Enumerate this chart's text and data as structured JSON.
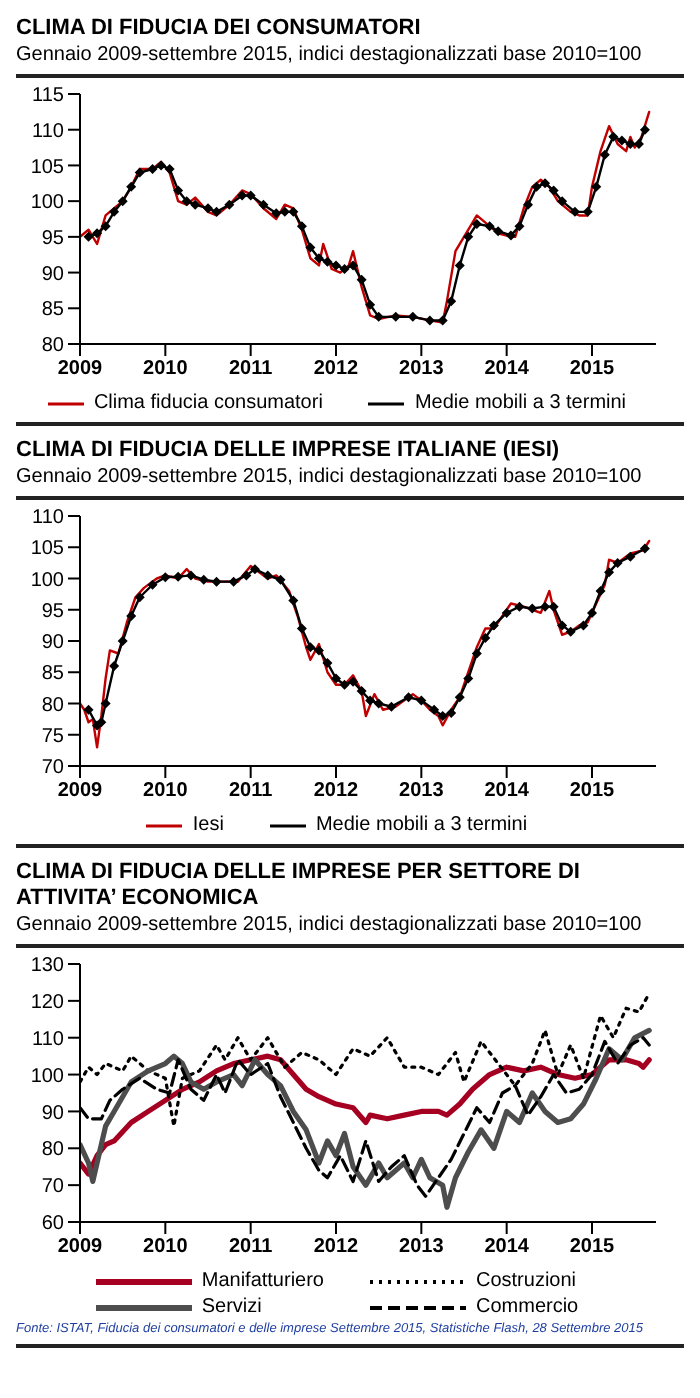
{
  "chart_data": [
    {
      "type": "line",
      "title": "CLIMA DI FIDUCIA DEI CONSUMATORI",
      "subtitle": "Gennaio 2009-settembre 2015, indici destagionalizzati base 2010=100",
      "xlim": [
        2009,
        2015.75
      ],
      "xticks": [
        2009,
        2010,
        2011,
        2012,
        2013,
        2014,
        2015
      ],
      "ylim": [
        80,
        115
      ],
      "yticks": [
        80,
        85,
        90,
        95,
        100,
        105,
        110,
        115
      ],
      "legend": "bottom",
      "series": [
        {
          "name": "Clima fiducia consumatori",
          "color": "#c00000",
          "marker": "none",
          "line_style": "solid",
          "x": [
            2009.0,
            2009.1,
            2009.2,
            2009.3,
            2009.5,
            2009.6,
            2009.7,
            2009.85,
            2009.95,
            2010.05,
            2010.15,
            2010.25,
            2010.35,
            2010.5,
            2010.6,
            2010.75,
            2010.9,
            2011.0,
            2011.15,
            2011.3,
            2011.4,
            2011.5,
            2011.6,
            2011.7,
            2011.8,
            2011.85,
            2011.95,
            2012.05,
            2012.15,
            2012.2,
            2012.3,
            2012.4,
            2012.5,
            2012.7,
            2012.9,
            2013.1,
            2013.25,
            2013.3,
            2013.4,
            2013.5,
            2013.6,
            2013.65,
            2013.8,
            2013.9,
            2014.05,
            2014.1,
            2014.2,
            2014.3,
            2014.4,
            2014.5,
            2014.6,
            2014.75,
            2014.85,
            2014.95,
            2015.0,
            2015.1,
            2015.2,
            2015.3,
            2015.4,
            2015.45,
            2015.5,
            2015.58,
            2015.67
          ],
          "values": [
            95,
            96,
            94,
            98,
            100,
            102,
            104.5,
            104.5,
            105.5,
            104,
            100,
            99.5,
            100.5,
            98.5,
            98,
            99.5,
            101.5,
            101,
            99,
            97.5,
            99.5,
            99,
            96,
            92,
            91,
            94,
            90.5,
            90,
            91,
            93,
            88,
            84,
            83.5,
            84,
            83.8,
            83.3,
            83,
            86,
            93,
            95,
            97,
            98,
            96.5,
            95.5,
            95,
            95,
            99,
            102,
            103,
            102,
            100,
            98.5,
            98,
            98,
            102,
            107,
            110.5,
            108,
            107,
            109,
            107.5,
            109,
            112.5
          ]
        },
        {
          "name": "Medie mobili a 3 termini",
          "color": "#000000",
          "marker": "diamond",
          "line_style": "solid",
          "x": [
            2009.1,
            2009.2,
            2009.3,
            2009.4,
            2009.5,
            2009.6,
            2009.7,
            2009.85,
            2009.95,
            2010.05,
            2010.15,
            2010.25,
            2010.35,
            2010.5,
            2010.6,
            2010.75,
            2010.9,
            2011.0,
            2011.15,
            2011.3,
            2011.4,
            2011.5,
            2011.6,
            2011.7,
            2011.8,
            2011.9,
            2012.0,
            2012.1,
            2012.2,
            2012.3,
            2012.4,
            2012.5,
            2012.7,
            2012.9,
            2013.1,
            2013.25,
            2013.35,
            2013.45,
            2013.55,
            2013.65,
            2013.8,
            2013.9,
            2014.05,
            2014.15,
            2014.25,
            2014.35,
            2014.45,
            2014.55,
            2014.65,
            2014.8,
            2014.95,
            2015.05,
            2015.15,
            2015.25,
            2015.35,
            2015.45,
            2015.55,
            2015.62
          ],
          "values": [
            95,
            95.5,
            96.5,
            98.5,
            100,
            102,
            104,
            104.5,
            105,
            104.5,
            101.5,
            100,
            99.5,
            99,
            98.5,
            99.5,
            100.8,
            100.8,
            99.5,
            98.3,
            98.5,
            98.5,
            96.5,
            93.5,
            92,
            91.5,
            91,
            90.5,
            91,
            89,
            85.5,
            83.8,
            83.8,
            83.8,
            83.3,
            83.3,
            86,
            91,
            95,
            96.8,
            96.5,
            95.8,
            95.2,
            96.5,
            99.5,
            102,
            102.5,
            101.5,
            100,
            98.5,
            98.5,
            102,
            106.5,
            109,
            108.5,
            108,
            108,
            110
          ]
        }
      ]
    },
    {
      "type": "line",
      "title": "CLIMA DI FIDUCIA DELLE IMPRESE ITALIANE (IESI)",
      "subtitle": "Gennaio 2009-settembre 2015, indici destagionalizzati base 2010=100",
      "xlim": [
        2009,
        2015.75
      ],
      "xticks": [
        2009,
        2010,
        2011,
        2012,
        2013,
        2014,
        2015
      ],
      "ylim": [
        70,
        110
      ],
      "yticks": [
        70,
        75,
        80,
        85,
        90,
        95,
        100,
        105,
        110
      ],
      "legend": "bottom",
      "series": [
        {
          "name": "Iesi",
          "color": "#c00000",
          "marker": "none",
          "line_style": "solid",
          "x": [
            2009.0,
            2009.05,
            2009.1,
            2009.15,
            2009.2,
            2009.25,
            2009.3,
            2009.35,
            2009.45,
            2009.55,
            2009.65,
            2009.75,
            2009.9,
            2010.0,
            2010.15,
            2010.25,
            2010.35,
            2010.5,
            2010.7,
            2010.85,
            2011.0,
            2011.1,
            2011.2,
            2011.3,
            2011.45,
            2011.55,
            2011.65,
            2011.7,
            2011.8,
            2011.9,
            2012.0,
            2012.1,
            2012.2,
            2012.3,
            2012.35,
            2012.45,
            2012.55,
            2012.7,
            2012.9,
            2013.0,
            2013.1,
            2013.2,
            2013.25,
            2013.35,
            2013.45,
            2013.55,
            2013.65,
            2013.75,
            2013.85,
            2013.95,
            2014.05,
            2014.2,
            2014.3,
            2014.4,
            2014.5,
            2014.55,
            2014.65,
            2014.75,
            2014.85,
            2014.95,
            2015.05,
            2015.15,
            2015.2,
            2015.3,
            2015.45,
            2015.6,
            2015.67
          ],
          "values": [
            80,
            79,
            77,
            77.5,
            73,
            78,
            84,
            88.5,
            88,
            93,
            97,
            98.5,
            100,
            100.5,
            100,
            101.5,
            100,
            99.5,
            99.5,
            99.5,
            102,
            101,
            100,
            100.5,
            98,
            94,
            89,
            87,
            89.5,
            85,
            83,
            83,
            84.5,
            82,
            78,
            81.5,
            79,
            79.5,
            81.5,
            80.5,
            79,
            78,
            76.5,
            79,
            81,
            85,
            89,
            92,
            92,
            94,
            96,
            95.5,
            95,
            94.5,
            98,
            95,
            91,
            91.5,
            92.5,
            93,
            96,
            99,
            103,
            102.5,
            104,
            104.5,
            106
          ]
        },
        {
          "name": "Medie mobili a 3 termini",
          "color": "#000000",
          "marker": "diamond",
          "line_style": "solid",
          "x": [
            2009.1,
            2009.2,
            2009.25,
            2009.3,
            2009.4,
            2009.5,
            2009.6,
            2009.7,
            2009.85,
            2010.0,
            2010.15,
            2010.3,
            2010.45,
            2010.6,
            2010.8,
            2010.95,
            2011.05,
            2011.2,
            2011.35,
            2011.5,
            2011.6,
            2011.7,
            2011.8,
            2011.9,
            2012.0,
            2012.1,
            2012.2,
            2012.3,
            2012.4,
            2012.5,
            2012.65,
            2012.85,
            2013.0,
            2013.15,
            2013.25,
            2013.35,
            2013.45,
            2013.55,
            2013.65,
            2013.75,
            2013.85,
            2014.0,
            2014.15,
            2014.3,
            2014.45,
            2014.55,
            2014.65,
            2014.75,
            2014.9,
            2015.0,
            2015.1,
            2015.2,
            2015.3,
            2015.45,
            2015.62
          ],
          "values": [
            79,
            76.5,
            77,
            80,
            86,
            90,
            94,
            97,
            99,
            100.2,
            100.3,
            100.5,
            99.8,
            99.5,
            99.5,
            100.5,
            101.5,
            100.5,
            99.8,
            96.5,
            92,
            89,
            88.5,
            86.5,
            84,
            83,
            83.5,
            82,
            80.5,
            80,
            79.5,
            81,
            80.5,
            79,
            78,
            78.5,
            81,
            84,
            88,
            90.5,
            92.5,
            94.5,
            95.5,
            95.2,
            95.5,
            95.5,
            92.5,
            91.5,
            92.5,
            94.5,
            98,
            101,
            102.5,
            103.5,
            104.8
          ]
        }
      ]
    },
    {
      "type": "line",
      "title": "CLIMA DI FIDUCIA DELLE IMPRESE PER SETTORE DI ATTIVITA’ ECONOMICA",
      "subtitle": "Gennaio 2009-settembre 2015, indici destagionalizzati base 2010=100",
      "xlim": [
        2009,
        2015.75
      ],
      "xticks": [
        2009,
        2010,
        2011,
        2012,
        2013,
        2014,
        2015
      ],
      "ylim": [
        60,
        130
      ],
      "yticks": [
        60,
        70,
        80,
        90,
        100,
        110,
        120,
        130
      ],
      "legend": "bottom",
      "annotations": [
        "Fonte: ISTAT, Fiducia dei consumatori e delle imprese Settembre 2015, Statistiche Flash, 28 Settembre 2015"
      ],
      "series": [
        {
          "name": "Manifatturiero",
          "color": "#a50021",
          "marker": "none",
          "line_style": "solid",
          "x": [
            2009.0,
            2009.1,
            2009.2,
            2009.3,
            2009.4,
            2009.6,
            2009.8,
            2010.0,
            2010.2,
            2010.4,
            2010.6,
            2010.8,
            2011.0,
            2011.2,
            2011.35,
            2011.5,
            2011.65,
            2011.8,
            2012.0,
            2012.2,
            2012.35,
            2012.4,
            2012.6,
            2012.8,
            2013.0,
            2013.2,
            2013.3,
            2013.45,
            2013.6,
            2013.8,
            2014.0,
            2014.2,
            2014.4,
            2014.6,
            2014.8,
            2015.0,
            2015.2,
            2015.4,
            2015.55,
            2015.6,
            2015.67
          ],
          "values": [
            76,
            73,
            78,
            81,
            82,
            87,
            90,
            93,
            96,
            98,
            101,
            103,
            104,
            105,
            104,
            100,
            96,
            94,
            92,
            91,
            87,
            89,
            88,
            89,
            90,
            90,
            89,
            92,
            96,
            100,
            102,
            101,
            102,
            100,
            99,
            100,
            104,
            104,
            103,
            102,
            104
          ]
        },
        {
          "name": "Costruzioni",
          "color": "#000000",
          "marker": "none",
          "line_style": "dotted",
          "x": [
            2009.0,
            2009.1,
            2009.2,
            2009.3,
            2009.5,
            2009.6,
            2009.8,
            2010.0,
            2010.1,
            2010.2,
            2010.4,
            2010.6,
            2010.7,
            2010.85,
            2011.0,
            2011.2,
            2011.4,
            2011.6,
            2011.8,
            2012.0,
            2012.2,
            2012.4,
            2012.6,
            2012.8,
            2013.0,
            2013.2,
            2013.4,
            2013.5,
            2013.7,
            2013.9,
            2014.1,
            2014.3,
            2014.45,
            2014.6,
            2014.75,
            2014.9,
            2015.1,
            2015.25,
            2015.4,
            2015.55,
            2015.67
          ],
          "values": [
            98,
            102,
            100,
            103,
            101,
            105,
            101,
            99,
            86,
            99,
            101,
            108,
            104,
            110,
            104,
            110,
            102,
            106,
            104,
            100,
            107,
            105,
            110,
            102,
            102,
            100,
            106,
            98,
            109,
            103,
            97,
            103,
            112,
            100,
            108,
            99,
            116,
            110,
            118,
            117,
            122
          ]
        },
        {
          "name": "Servizi",
          "color": "#4d4d4d",
          "marker": "none",
          "line_style": "solid",
          "x": [
            2009.0,
            2009.1,
            2009.15,
            2009.3,
            2009.4,
            2009.6,
            2009.8,
            2010.0,
            2010.1,
            2010.2,
            2010.3,
            2010.45,
            2010.6,
            2010.8,
            2010.9,
            2011.05,
            2011.2,
            2011.35,
            2011.5,
            2011.65,
            2011.8,
            2011.9,
            2012.0,
            2012.1,
            2012.2,
            2012.35,
            2012.5,
            2012.6,
            2012.8,
            2012.9,
            2013.0,
            2013.1,
            2013.25,
            2013.3,
            2013.4,
            2013.55,
            2013.7,
            2013.85,
            2014.0,
            2014.15,
            2014.3,
            2014.45,
            2014.6,
            2014.75,
            2014.9,
            2015.05,
            2015.2,
            2015.35,
            2015.5,
            2015.67
          ],
          "values": [
            81,
            76,
            71,
            86,
            90,
            98,
            101,
            103,
            105,
            103,
            98,
            96,
            98,
            100,
            97,
            104,
            100,
            97,
            90,
            85,
            76,
            82,
            78,
            84,
            75,
            70,
            76,
            72,
            76,
            72,
            77,
            72,
            70,
            64,
            72,
            79,
            85,
            80,
            90,
            87,
            95,
            90,
            87,
            88,
            92,
            99,
            107,
            104,
            110,
            112
          ]
        },
        {
          "name": "Commercio",
          "color": "#000000",
          "marker": "none",
          "line_style": "dashed",
          "x": [
            2009.0,
            2009.1,
            2009.25,
            2009.35,
            2009.5,
            2009.7,
            2009.9,
            2010.05,
            2010.15,
            2010.3,
            2010.45,
            2010.6,
            2010.7,
            2010.85,
            2011.0,
            2011.2,
            2011.35,
            2011.5,
            2011.65,
            2011.8,
            2011.9,
            2012.05,
            2012.2,
            2012.35,
            2012.5,
            2012.65,
            2012.8,
            2012.95,
            2013.05,
            2013.2,
            2013.35,
            2013.5,
            2013.65,
            2013.8,
            2013.95,
            2014.1,
            2014.25,
            2014.4,
            2014.55,
            2014.7,
            2014.85,
            2015.0,
            2015.15,
            2015.3,
            2015.45,
            2015.6,
            2015.67
          ],
          "values": [
            91,
            88,
            88,
            93,
            96,
            99,
            96,
            95,
            104,
            96,
            93,
            100,
            95,
            104,
            100,
            103,
            94,
            87,
            80,
            74,
            72,
            78,
            71,
            82,
            71,
            75,
            78,
            70,
            67,
            72,
            77,
            84,
            91,
            87,
            95,
            97,
            89,
            94,
            100,
            95,
            96,
            100,
            109,
            103,
            108,
            110,
            108
          ]
        }
      ]
    }
  ]
}
